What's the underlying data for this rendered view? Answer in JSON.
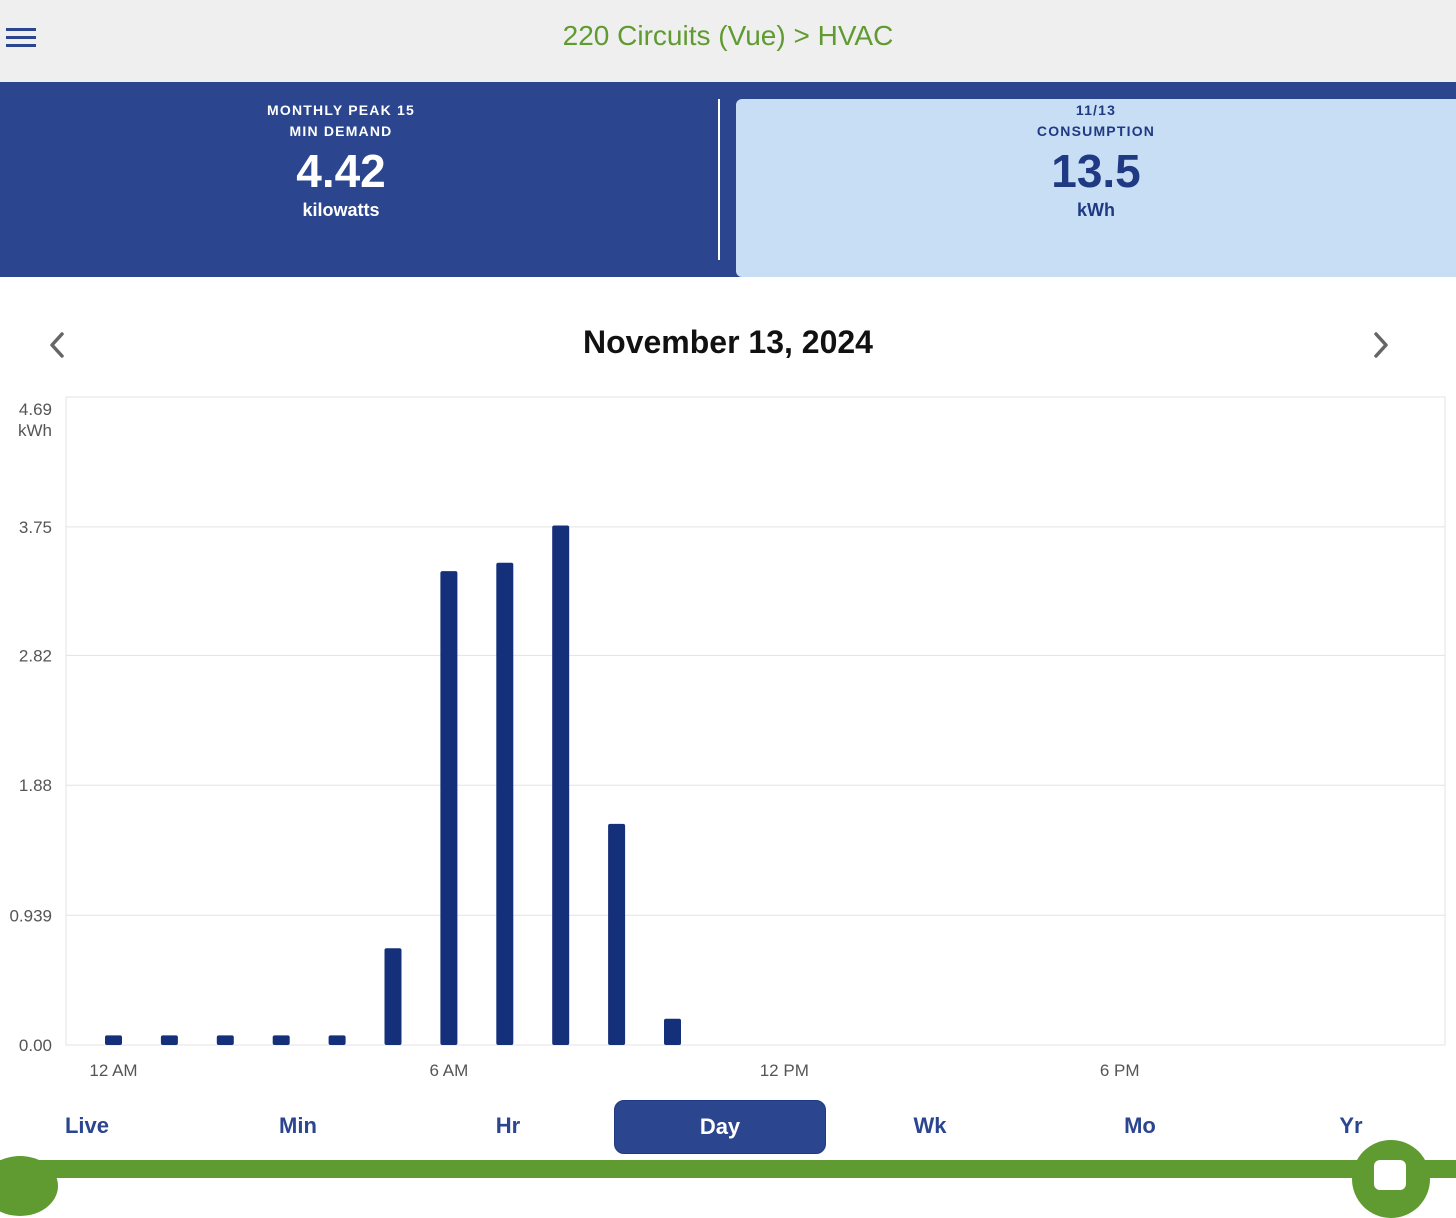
{
  "header": {
    "title": "220 Circuits (Vue) > HVAC"
  },
  "stats": {
    "demand": {
      "label_line1": "MONTHLY PEAK 15",
      "label_line2": "MIN DEMAND",
      "value": "4.42",
      "unit": "kilowatts"
    },
    "consumption": {
      "label_line1": "11/13",
      "label_line2": "CONSUMPTION",
      "value": "13.5",
      "unit": "kWh"
    }
  },
  "date_nav": {
    "title": "November 13, 2024"
  },
  "chart_data": {
    "type": "bar",
    "ylabel": "kWh",
    "ylim": [
      0,
      4.69
    ],
    "y_ticks": [
      "0.00",
      "0.939",
      "1.88",
      "2.82",
      "3.75",
      "4.69"
    ],
    "x_tick_labels": [
      "12 AM",
      "6 AM",
      "12 PM",
      "6 PM"
    ],
    "categories": [
      "12 AM",
      "1 AM",
      "2 AM",
      "3 AM",
      "4 AM",
      "5 AM",
      "6 AM",
      "7 AM",
      "8 AM",
      "9 AM",
      "10 AM",
      "11 AM",
      "12 PM",
      "1 PM",
      "2 PM",
      "3 PM",
      "4 PM",
      "5 PM",
      "6 PM",
      "7 PM",
      "8 PM",
      "9 PM",
      "10 PM",
      "11 PM"
    ],
    "values": [
      0.07,
      0.07,
      0.07,
      0.07,
      0.07,
      0.7,
      3.43,
      3.49,
      3.76,
      1.6,
      0.19,
      null,
      null,
      null,
      null,
      null,
      null,
      null,
      null,
      null,
      null,
      null,
      null,
      null
    ],
    "grid": true,
    "bar_color": "#14307a"
  },
  "tabs": [
    "Live",
    "Min",
    "Hr",
    "Day",
    "Wk",
    "Mo",
    "Yr"
  ],
  "active_tab": "Day"
}
